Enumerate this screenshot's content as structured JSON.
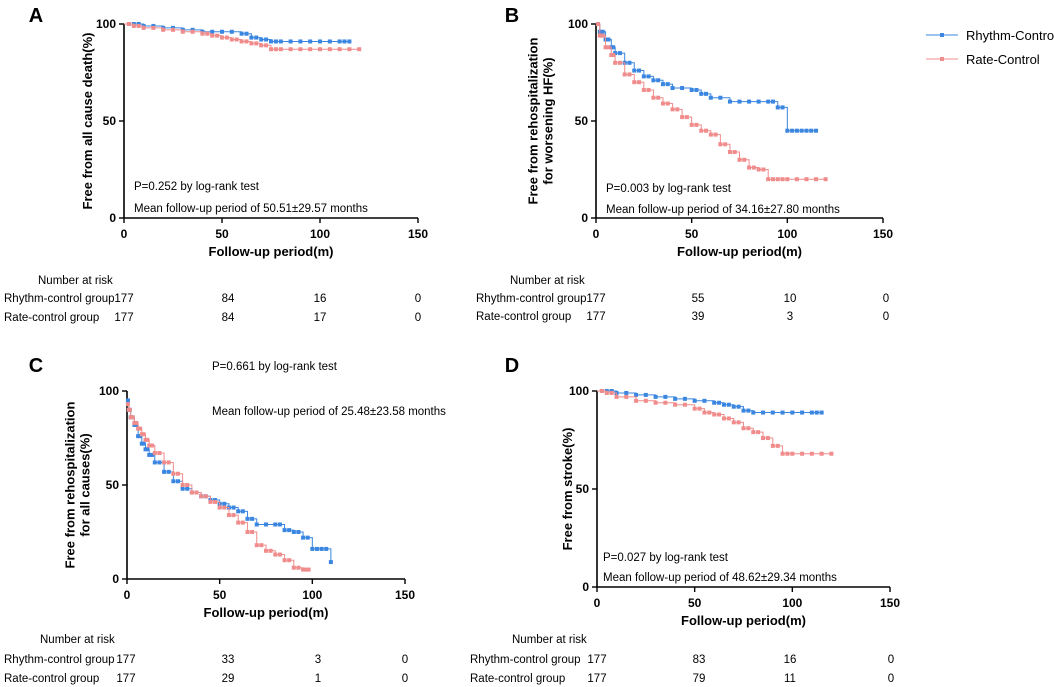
{
  "colors": {
    "rhythm": "#3a86e0",
    "rate": "#f08c8c"
  },
  "legend": {
    "rhythm": "Rhythm-Control",
    "rate": "Rate-Control"
  },
  "chart_data": [
    {
      "type": "line",
      "panel": "A",
      "ylabel_lines": [
        "Free from all cause death(%)"
      ],
      "xlabel": "Follow-up period(m)",
      "xlim": [
        0,
        150
      ],
      "ylim": [
        0,
        100
      ],
      "xticks": [
        0,
        50,
        100,
        150
      ],
      "yticks": [
        0,
        50,
        100
      ],
      "annotations": [
        "P=0.252 by log-rank test",
        "Mean follow-up period of 50.51±29.57 months"
      ],
      "series": [
        {
          "name": "Rhythm-Control",
          "key": "rhythm",
          "x": [
            0,
            5,
            10,
            20,
            30,
            40,
            50,
            60,
            65,
            70,
            75,
            80,
            90,
            100,
            110,
            115
          ],
          "y": [
            100,
            100,
            99,
            98,
            97,
            96,
            96,
            95,
            93,
            92,
            91,
            91,
            91,
            91,
            91,
            91
          ]
        },
        {
          "name": "Rate-Control",
          "key": "rate",
          "x": [
            0,
            5,
            10,
            20,
            30,
            40,
            45,
            50,
            55,
            60,
            65,
            70,
            75,
            80,
            90,
            100,
            110,
            120
          ],
          "y": [
            100,
            99,
            98,
            97,
            96,
            95,
            94,
            93,
            92,
            91,
            90,
            89,
            87,
            87,
            87,
            87,
            87,
            87
          ]
        }
      ],
      "risk_table": {
        "title": "Number at risk",
        "x": [
          0,
          50,
          100,
          150
        ],
        "rows": [
          {
            "label": "Rhythm-control group",
            "values": [
              "177",
              "84",
              "16",
              "0"
            ]
          },
          {
            "label": "Rate-control group",
            "values": [
              "177",
              "84",
              "17",
              "0"
            ]
          }
        ]
      }
    },
    {
      "type": "line",
      "panel": "B",
      "ylabel_lines": [
        "Free from rehospitalization",
        "for worsening HF(%)"
      ],
      "xlabel": "Follow-up period(m)",
      "xlim": [
        0,
        150
      ],
      "ylim": [
        0,
        100
      ],
      "xticks": [
        0,
        50,
        100,
        150
      ],
      "yticks": [
        0,
        50,
        100
      ],
      "annotations": [
        "P=0.003 by log-rank test",
        "Mean follow-up period of 34.16±27.80 months"
      ],
      "series": [
        {
          "name": "Rhythm-Control",
          "key": "rhythm",
          "x": [
            0,
            2,
            5,
            8,
            10,
            15,
            20,
            25,
            30,
            35,
            40,
            50,
            55,
            60,
            70,
            80,
            90,
            95,
            100,
            105,
            110,
            115
          ],
          "y": [
            100,
            96,
            92,
            88,
            85,
            80,
            76,
            73,
            71,
            69,
            67,
            66,
            64,
            62,
            60,
            60,
            60,
            57,
            45,
            45,
            45,
            45
          ]
        },
        {
          "name": "Rate-Control",
          "key": "rate",
          "x": [
            0,
            2,
            5,
            8,
            10,
            15,
            20,
            25,
            30,
            35,
            40,
            45,
            50,
            55,
            60,
            65,
            70,
            75,
            80,
            85,
            90,
            95,
            100,
            110,
            120
          ],
          "y": [
            100,
            94,
            88,
            84,
            80,
            74,
            70,
            66,
            62,
            59,
            56,
            52,
            48,
            45,
            43,
            38,
            34,
            30,
            26,
            25,
            20,
            20,
            20,
            20,
            20
          ]
        }
      ],
      "risk_table": {
        "title": "Number at risk",
        "x": [
          0,
          50,
          100,
          150
        ],
        "rows": [
          {
            "label": "Rhythm-control group",
            "values": [
              "177",
              "55",
              "10",
              "0"
            ]
          },
          {
            "label": "Rate-control group",
            "values": [
              "177",
              "39",
              "3",
              "0"
            ]
          }
        ]
      }
    },
    {
      "type": "line",
      "panel": "C",
      "ylabel_lines": [
        "Free from rehospitalization",
        "for all causes(%)"
      ],
      "xlabel": "Follow-up period(m)",
      "xlim": [
        0,
        150
      ],
      "ylim": [
        0,
        100
      ],
      "xticks": [
        0,
        50,
        100,
        150
      ],
      "yticks": [
        0,
        50,
        100
      ],
      "annotations": [
        "P=0.661 by log-rank test",
        "Mean follow-up period of 25.48±23.58 months"
      ],
      "series": [
        {
          "name": "Rhythm-Control",
          "key": "rhythm",
          "x": [
            0,
            1,
            2,
            4,
            6,
            8,
            10,
            12,
            15,
            20,
            25,
            30,
            35,
            40,
            45,
            50,
            55,
            60,
            65,
            70,
            80,
            85,
            90,
            95,
            100,
            105,
            110
          ],
          "y": [
            95,
            90,
            86,
            82,
            76,
            72,
            69,
            66,
            62,
            57,
            52,
            48,
            46,
            44,
            42,
            40,
            38,
            36,
            32,
            29,
            29,
            26,
            25,
            22,
            16,
            16,
            9
          ]
        },
        {
          "name": "Rate-Control",
          "key": "rate",
          "x": [
            0,
            1,
            2,
            4,
            6,
            8,
            10,
            12,
            15,
            20,
            25,
            30,
            35,
            40,
            45,
            50,
            55,
            60,
            65,
            70,
            75,
            80,
            85,
            90,
            95,
            98
          ],
          "y": [
            93,
            90,
            86,
            83,
            80,
            77,
            74,
            71,
            67,
            62,
            56,
            50,
            46,
            44,
            41,
            38,
            34,
            30,
            25,
            18,
            15,
            13,
            10,
            6,
            5,
            5
          ]
        }
      ],
      "risk_table": {
        "title": "Number at risk",
        "x": [
          0,
          50,
          100,
          150
        ],
        "rows": [
          {
            "label": "Rhythm-control group",
            "values": [
              "177",
              "33",
              "3",
              "0"
            ]
          },
          {
            "label": "Rate-control group",
            "values": [
              "177",
              "29",
              "1",
              "0"
            ]
          }
        ]
      }
    },
    {
      "type": "line",
      "panel": "D",
      "ylabel_lines": [
        "Free from stroke(%)"
      ],
      "xlabel": "Follow-up period(m)",
      "xlim": [
        0,
        150
      ],
      "ylim": [
        0,
        100
      ],
      "xticks": [
        0,
        50,
        100,
        150
      ],
      "yticks": [
        0,
        50,
        100
      ],
      "annotations": [
        "P=0.027 by log-rank test",
        "Mean follow-up period of 48.62±29.34 months"
      ],
      "series": [
        {
          "name": "Rhythm-Control",
          "key": "rhythm",
          "x": [
            0,
            5,
            10,
            20,
            30,
            40,
            50,
            60,
            65,
            70,
            75,
            80,
            90,
            100,
            110,
            115
          ],
          "y": [
            100,
            100,
            99,
            98,
            97,
            96,
            95,
            94,
            93,
            92,
            90,
            89,
            89,
            89,
            89,
            89
          ]
        },
        {
          "name": "Rate-Control",
          "key": "rate",
          "x": [
            0,
            5,
            10,
            20,
            30,
            40,
            50,
            55,
            60,
            65,
            70,
            75,
            80,
            85,
            90,
            95,
            100,
            110,
            120
          ],
          "y": [
            100,
            99,
            97,
            95,
            94,
            93,
            91,
            89,
            88,
            86,
            84,
            81,
            79,
            76,
            72,
            68,
            68,
            68,
            68
          ]
        }
      ],
      "risk_table": {
        "title": "Number at risk",
        "x": [
          0,
          50,
          100,
          150
        ],
        "rows": [
          {
            "label": "Rhythm-control group",
            "values": [
              "177",
              "83",
              "16",
              "0"
            ]
          },
          {
            "label": "Rate-control group",
            "values": [
              "177",
              "79",
              "11",
              "0"
            ]
          }
        ]
      }
    }
  ]
}
